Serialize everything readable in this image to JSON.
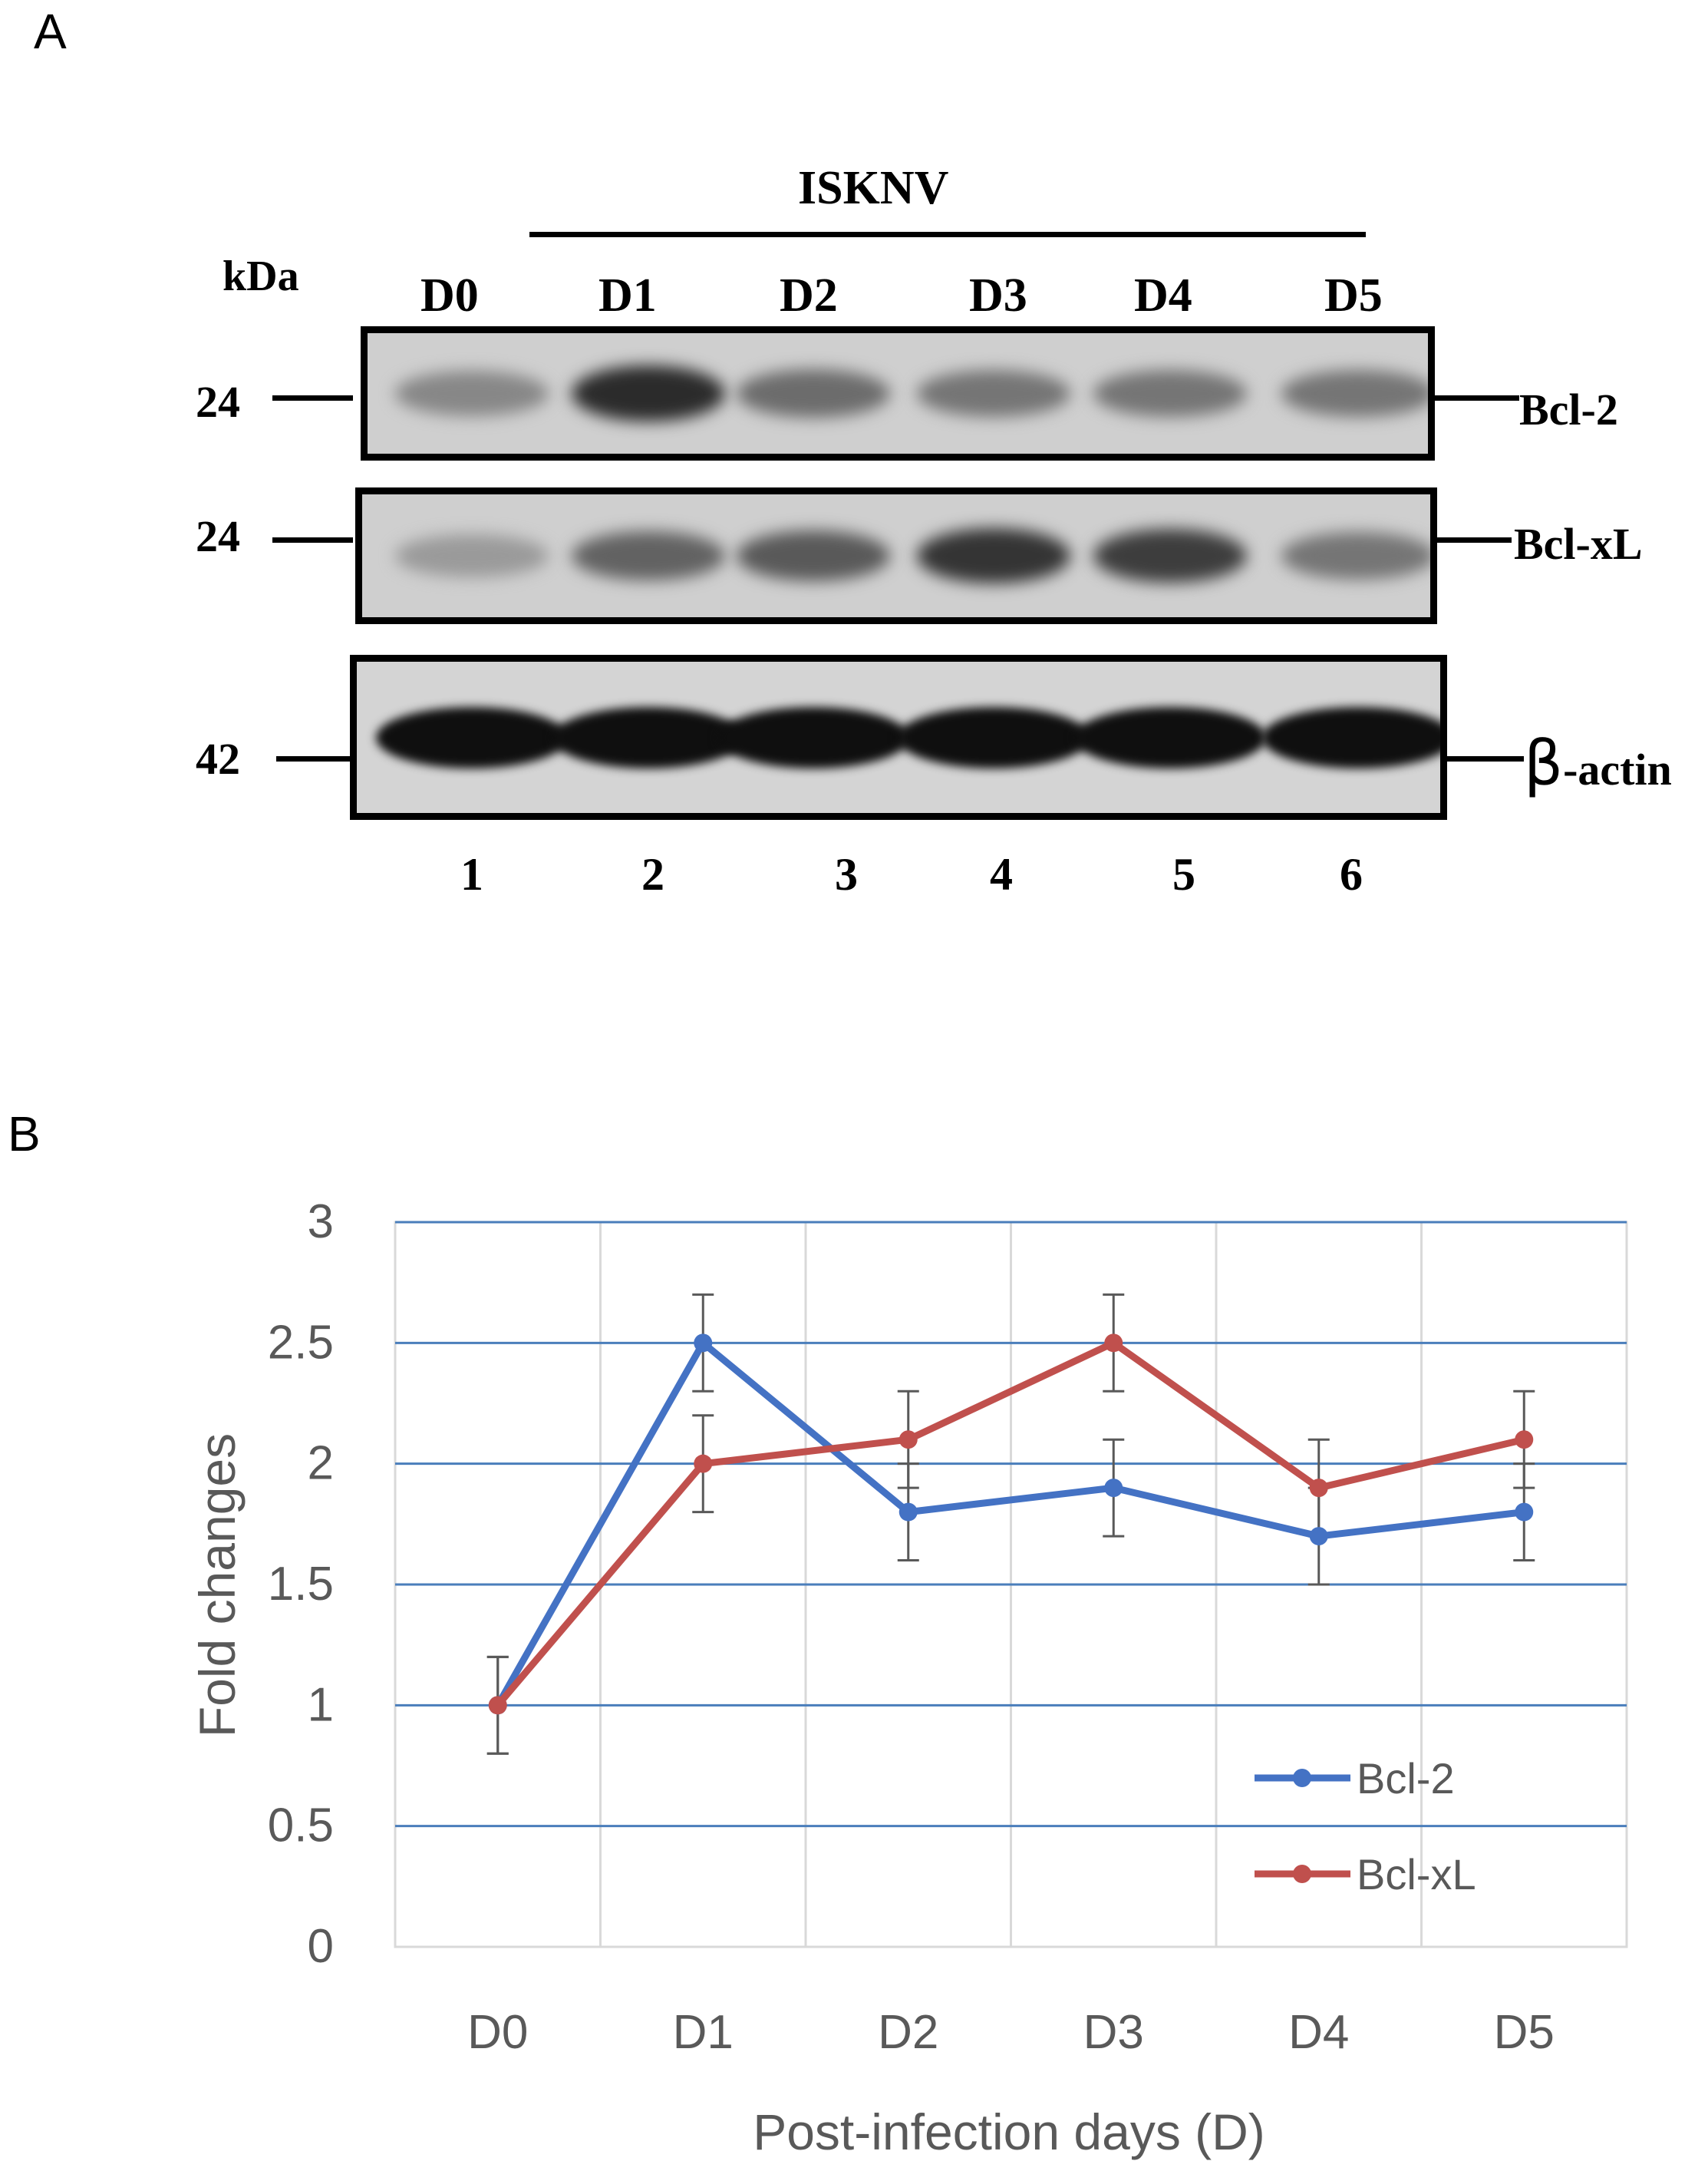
{
  "panel_a": {
    "letter": "A",
    "group_label": "ISKNV",
    "kda_label": "kDa",
    "lane_days": [
      "D0",
      "D1",
      "D2",
      "D3",
      "D4",
      "D5"
    ],
    "lane_numbers": [
      "1",
      "2",
      "3",
      "4",
      "5",
      "6"
    ],
    "blots": [
      {
        "kda": "24",
        "protein": "Bcl-2",
        "intensity": [
          0.35,
          0.85,
          0.5,
          0.45,
          0.45,
          0.45
        ]
      },
      {
        "kda": "24",
        "protein": "Bcl-xL",
        "intensity": [
          0.25,
          0.55,
          0.6,
          0.8,
          0.75,
          0.45
        ]
      },
      {
        "kda": "42",
        "protein_prefix": "β",
        "protein": "-actin",
        "intensity": [
          1,
          1,
          1,
          1,
          1,
          1
        ]
      }
    ]
  },
  "panel_b": {
    "letter": "B"
  },
  "chart_data": {
    "type": "line",
    "title": "",
    "xlabel": "Post-infection days (D)",
    "ylabel": "Fold changes",
    "categories": [
      "D0",
      "D1",
      "D2",
      "D3",
      "D4",
      "D5"
    ],
    "ylim": [
      0,
      3
    ],
    "yticks": [
      "0",
      "0.5",
      "1",
      "1.5",
      "2",
      "2.5",
      "3"
    ],
    "grid": true,
    "legend_position": "bottom-right",
    "series": [
      {
        "name": "Bcl-2",
        "color": "#4472C4",
        "values": [
          1,
          2.5,
          1.8,
          1.9,
          1.7,
          1.8
        ],
        "errors": [
          0.2,
          0.2,
          0.2,
          0.2,
          0.2,
          0.2
        ]
      },
      {
        "name": "Bcl-xL",
        "color": "#C0504D",
        "values": [
          1,
          2.0,
          2.1,
          2.5,
          1.9,
          2.1
        ],
        "errors": [
          0.2,
          0.2,
          0.2,
          0.2,
          0.2,
          0.2
        ]
      }
    ]
  }
}
